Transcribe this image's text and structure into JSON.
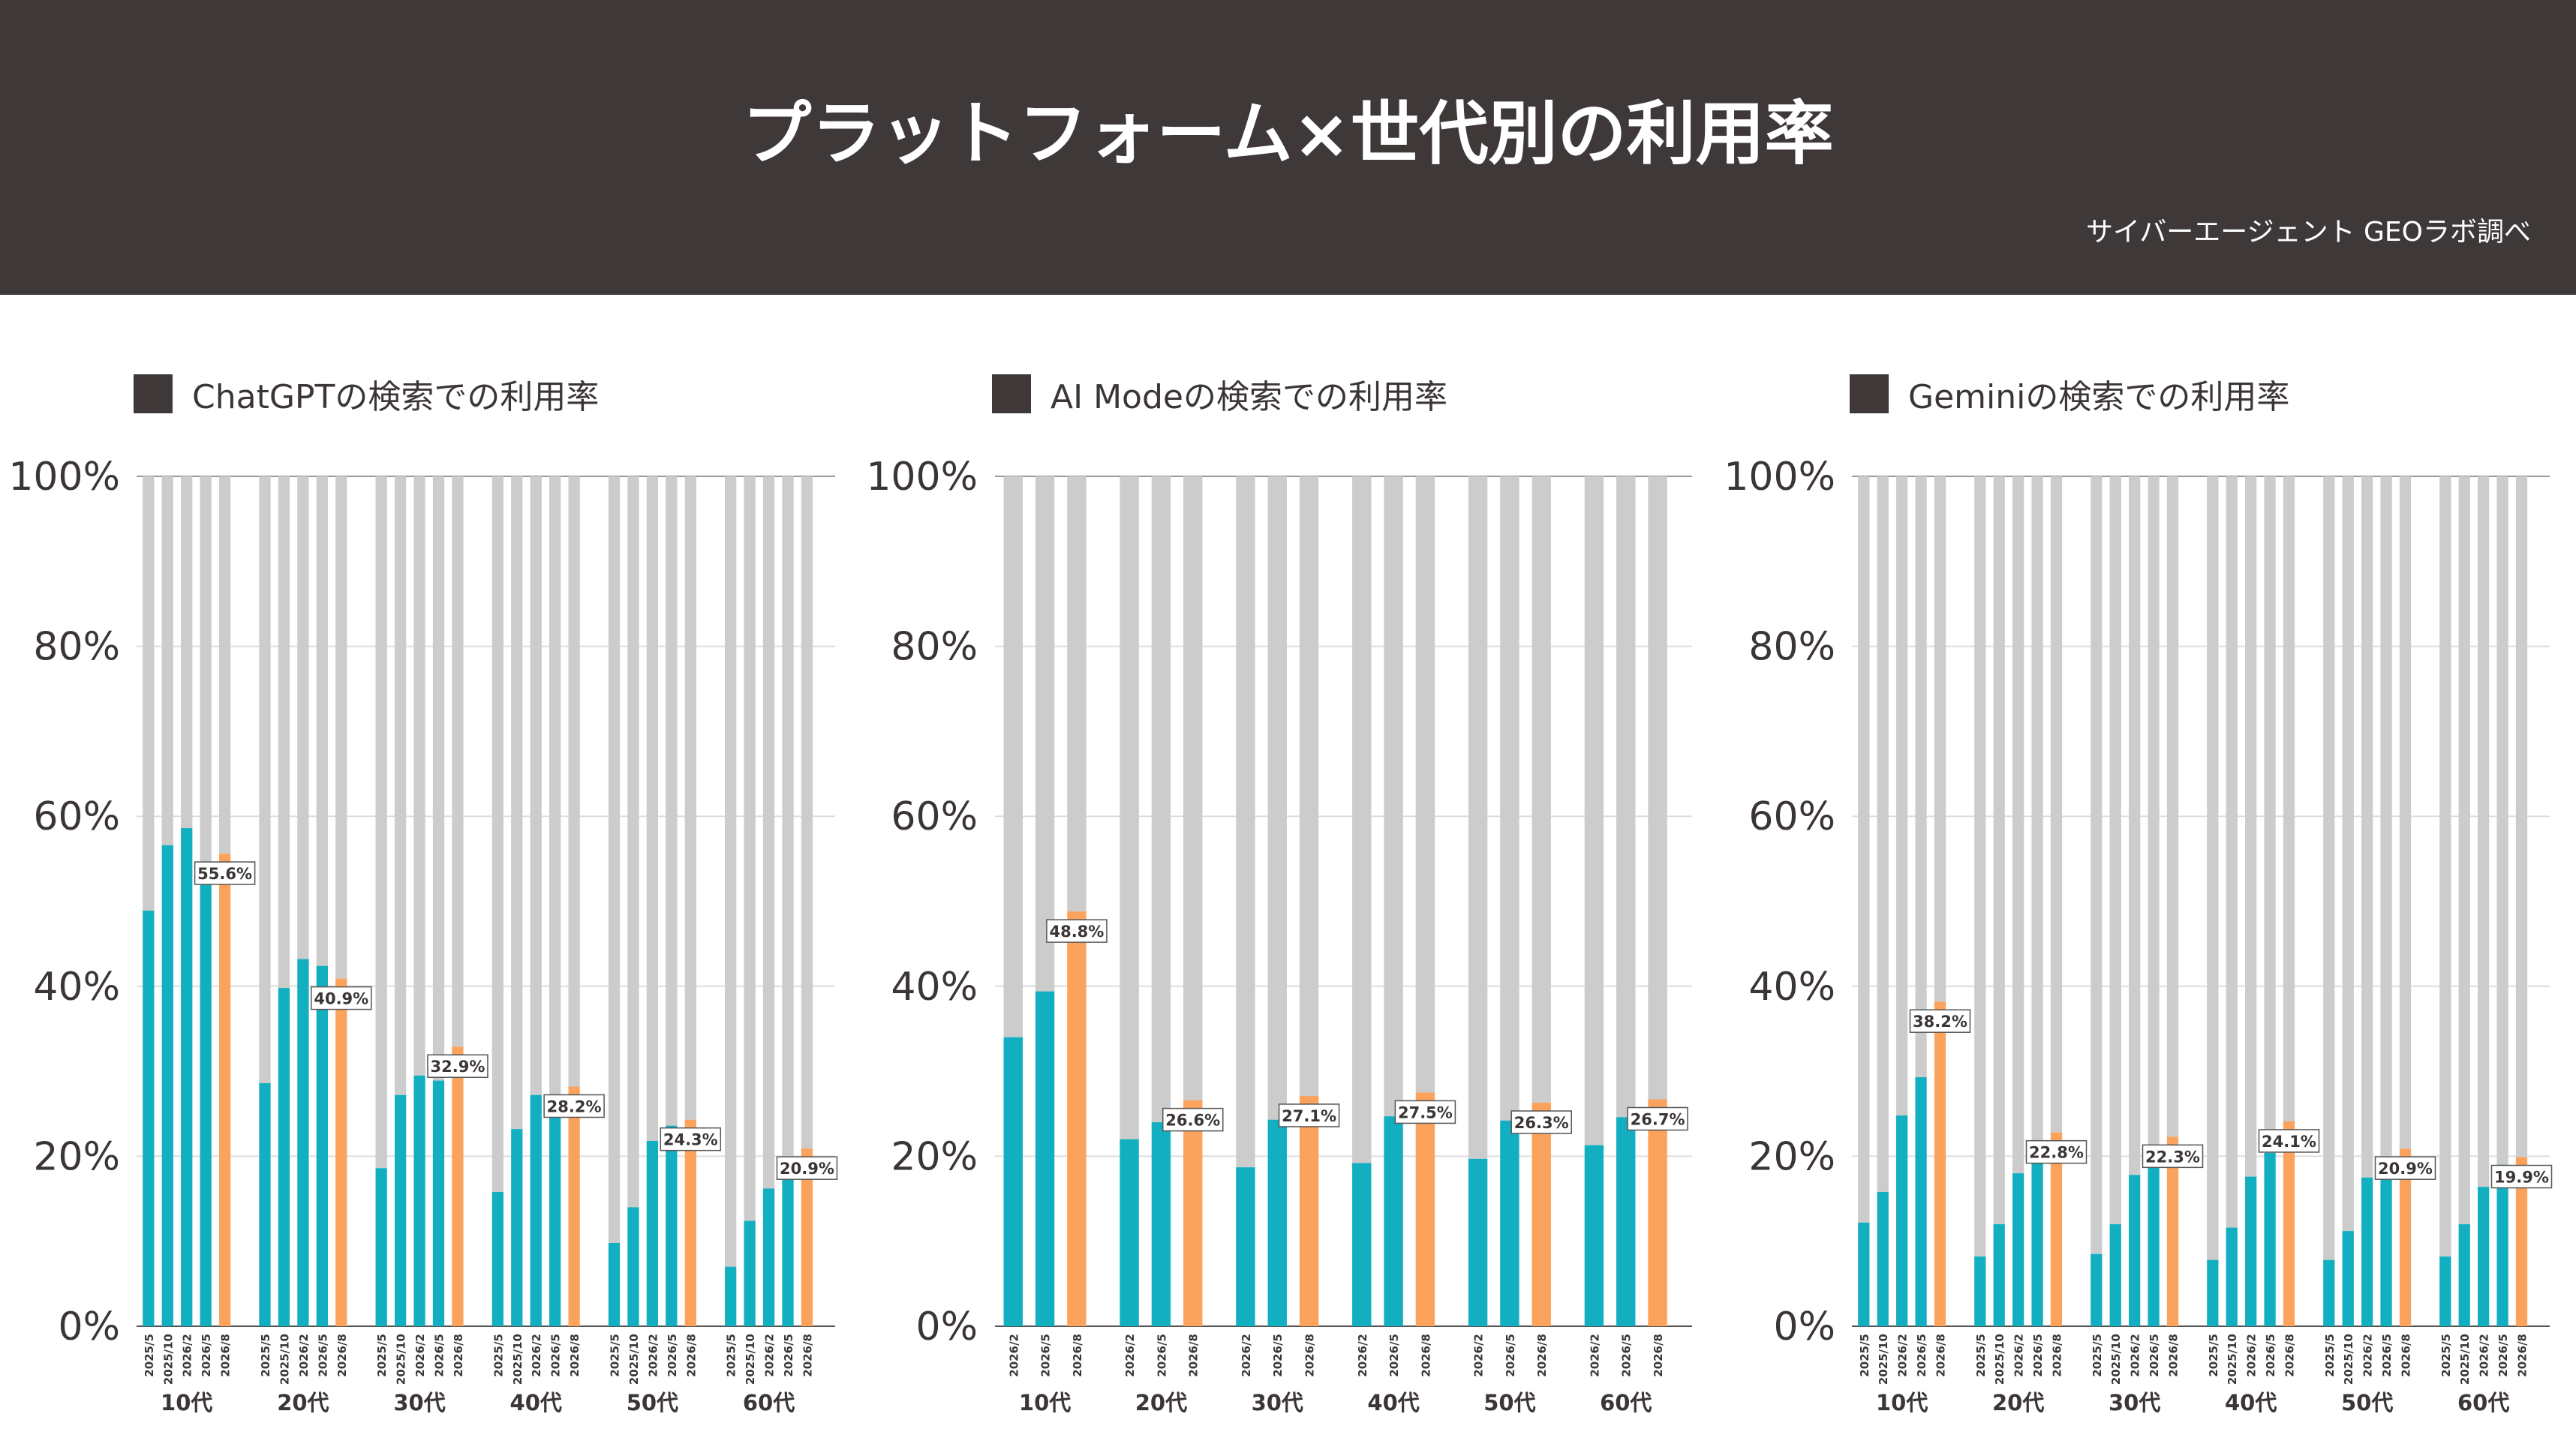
{
  "header": {
    "title": "プラットフォーム×世代別の利用率",
    "credit": "サイバーエージェント GEOラボ調べ"
  },
  "colors": {
    "header_bg": "#3e3938",
    "teal": "#12afc1",
    "orange": "#fba35c",
    "remainder": "#cccccc",
    "label_text": "#3b3635"
  },
  "chart_data": [
    {
      "type": "bar",
      "stacked": true,
      "title": "ChatGPTの検索での利用率",
      "ylim": [
        0,
        100
      ],
      "y_ticks": [
        "0%",
        "20%",
        "40%",
        "60%",
        "80%",
        "100%"
      ],
      "grid": true,
      "groups": [
        {
          "label": "10代",
          "categories": [
            "2025/5",
            "2025/10",
            "2026/2",
            "2026/5",
            "2026/8"
          ],
          "values": [
            48.9,
            56.6,
            58.6,
            52.4,
            55.6
          ]
        },
        {
          "label": "20代",
          "categories": [
            "2025/5",
            "2025/10",
            "2026/2",
            "2026/5",
            "2026/8"
          ],
          "values": [
            28.6,
            39.8,
            43.2,
            42.4,
            40.9
          ]
        },
        {
          "label": "30代",
          "categories": [
            "2025/5",
            "2025/10",
            "2026/2",
            "2026/5",
            "2026/8"
          ],
          "values": [
            18.6,
            27.2,
            29.5,
            28.9,
            32.9
          ]
        },
        {
          "label": "40代",
          "categories": [
            "2025/5",
            "2025/10",
            "2026/2",
            "2026/5",
            "2026/8"
          ],
          "values": [
            15.8,
            23.2,
            27.2,
            27.0,
            28.2
          ]
        },
        {
          "label": "50代",
          "categories": [
            "2025/5",
            "2025/10",
            "2026/2",
            "2026/5",
            "2026/8"
          ],
          "values": [
            9.8,
            14.0,
            21.8,
            23.6,
            24.3
          ]
        },
        {
          "label": "60代",
          "categories": [
            "2025/5",
            "2025/10",
            "2026/2",
            "2026/5",
            "2026/8"
          ],
          "values": [
            7.0,
            12.4,
            16.2,
            18.0,
            20.9
          ]
        }
      ],
      "data_labels": [
        "55.6%",
        "40.9%",
        "32.9%",
        "28.2%",
        "24.3%",
        "20.9%"
      ]
    },
    {
      "type": "bar",
      "stacked": true,
      "title": "AI Modeの検索での利用率",
      "ylim": [
        0,
        100
      ],
      "y_ticks": [
        "0%",
        "20%",
        "40%",
        "60%",
        "80%",
        "100%"
      ],
      "grid": true,
      "groups": [
        {
          "label": "10代",
          "categories": [
            "2026/2",
            "2026/5",
            "2026/8"
          ],
          "values": [
            34.0,
            39.4,
            48.8
          ]
        },
        {
          "label": "20代",
          "categories": [
            "2026/2",
            "2026/5",
            "2026/8"
          ],
          "values": [
            22.0,
            24.0,
            26.6
          ]
        },
        {
          "label": "30代",
          "categories": [
            "2026/2",
            "2026/5",
            "2026/8"
          ],
          "values": [
            18.7,
            24.3,
            27.1
          ]
        },
        {
          "label": "40代",
          "categories": [
            "2026/2",
            "2026/5",
            "2026/8"
          ],
          "values": [
            19.2,
            24.7,
            27.5
          ]
        },
        {
          "label": "50代",
          "categories": [
            "2026/2",
            "2026/5",
            "2026/8"
          ],
          "values": [
            19.7,
            24.2,
            26.3
          ]
        },
        {
          "label": "60代",
          "categories": [
            "2026/2",
            "2026/5",
            "2026/8"
          ],
          "values": [
            21.3,
            24.6,
            26.7
          ]
        }
      ],
      "data_labels": [
        "48.8%",
        "26.6%",
        "27.1%",
        "27.5%",
        "26.3%",
        "26.7%"
      ]
    },
    {
      "type": "bar",
      "stacked": true,
      "title": "Geminiの検索での利用率",
      "ylim": [
        0,
        100
      ],
      "y_ticks": [
        "0%",
        "20%",
        "40%",
        "60%",
        "80%",
        "100%"
      ],
      "grid": true,
      "groups": [
        {
          "label": "10代",
          "categories": [
            "2025/5",
            "2025/10",
            "2026/2",
            "2026/5",
            "2026/8"
          ],
          "values": [
            12.2,
            15.8,
            24.8,
            29.3,
            38.2
          ]
        },
        {
          "label": "20代",
          "categories": [
            "2025/5",
            "2025/10",
            "2026/2",
            "2026/5",
            "2026/8"
          ],
          "values": [
            8.2,
            12.0,
            18.0,
            19.5,
            22.8
          ]
        },
        {
          "label": "30代",
          "categories": [
            "2025/5",
            "2025/10",
            "2026/2",
            "2026/5",
            "2026/8"
          ],
          "values": [
            8.5,
            12.0,
            17.8,
            21.0,
            22.3
          ]
        },
        {
          "label": "40代",
          "categories": [
            "2025/5",
            "2025/10",
            "2026/2",
            "2026/5",
            "2026/8"
          ],
          "values": [
            7.8,
            11.6,
            17.6,
            20.4,
            24.1
          ]
        },
        {
          "label": "50代",
          "categories": [
            "2025/5",
            "2025/10",
            "2026/2",
            "2026/5",
            "2026/8"
          ],
          "values": [
            7.8,
            11.2,
            17.5,
            17.3,
            20.9
          ]
        },
        {
          "label": "60代",
          "categories": [
            "2025/5",
            "2025/10",
            "2026/2",
            "2026/5",
            "2026/8"
          ],
          "values": [
            8.2,
            12.0,
            16.4,
            19.0,
            19.9
          ]
        }
      ],
      "data_labels": [
        "38.2%",
        "22.8%",
        "22.3%",
        "24.1%",
        "20.9%",
        "19.9%"
      ]
    }
  ]
}
